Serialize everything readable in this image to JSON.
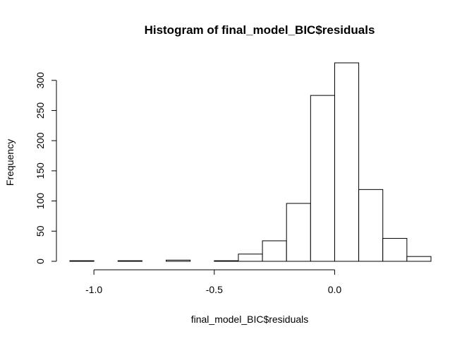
{
  "chart_data": {
    "type": "bar",
    "title": "Histogram of final_model_BIC$residuals",
    "xlabel": "final_model_BIC$residuals",
    "ylabel": "Frequency",
    "bin_edges": [
      -1.1,
      -1.0,
      -0.9,
      -0.8,
      -0.7,
      -0.6,
      -0.5,
      -0.4,
      -0.3,
      -0.2,
      -0.1,
      0.0,
      0.1,
      0.2,
      0.3,
      0.4
    ],
    "values": [
      1,
      0,
      1,
      0,
      2,
      0,
      1,
      12,
      34,
      96,
      275,
      329,
      119,
      38,
      8
    ],
    "xticks": [
      -1.0,
      -0.5,
      0.0
    ],
    "xtick_labels": [
      "-1.0",
      "-0.5",
      "0.0"
    ],
    "yticks": [
      0,
      50,
      100,
      150,
      200,
      250,
      300
    ],
    "ytick_labels": [
      "0",
      "50",
      "100",
      "150",
      "200",
      "250",
      "300"
    ],
    "xlim": [
      -1.1,
      0.4
    ],
    "ylim": [
      0,
      329
    ],
    "grid": false
  }
}
